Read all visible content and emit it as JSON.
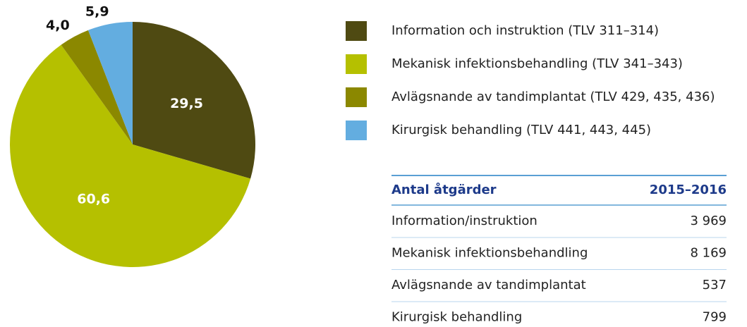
{
  "chart_data": {
    "type": "pie",
    "categories": [
      "Information och instruktion (TLV 311–314)",
      "Mekanisk infektionsbehandling (TLV 341–343)",
      "Avlägsnande av tandimplantat (TLV 429, 435, 436)",
      "Kirurgisk behandling (TLV 441, 443, 445)"
    ],
    "values": [
      29.5,
      60.6,
      4.0,
      5.9
    ],
    "value_labels": [
      "29,5",
      "60,6",
      "4,0",
      "5,9"
    ],
    "colors": [
      "#4f4a12",
      "#b5c000",
      "#8b8800",
      "#63ade0"
    ]
  },
  "table": {
    "header": [
      "Antal åtgärder",
      "2015–2016"
    ],
    "rows": [
      [
        "Information/instruktion",
        "3 969"
      ],
      [
        "Mekanisk infektionsbehandling",
        "8 169"
      ],
      [
        "Avlägsnande av tandimplantat",
        "537"
      ],
      [
        "Kirurgisk behandling",
        "799"
      ]
    ]
  }
}
